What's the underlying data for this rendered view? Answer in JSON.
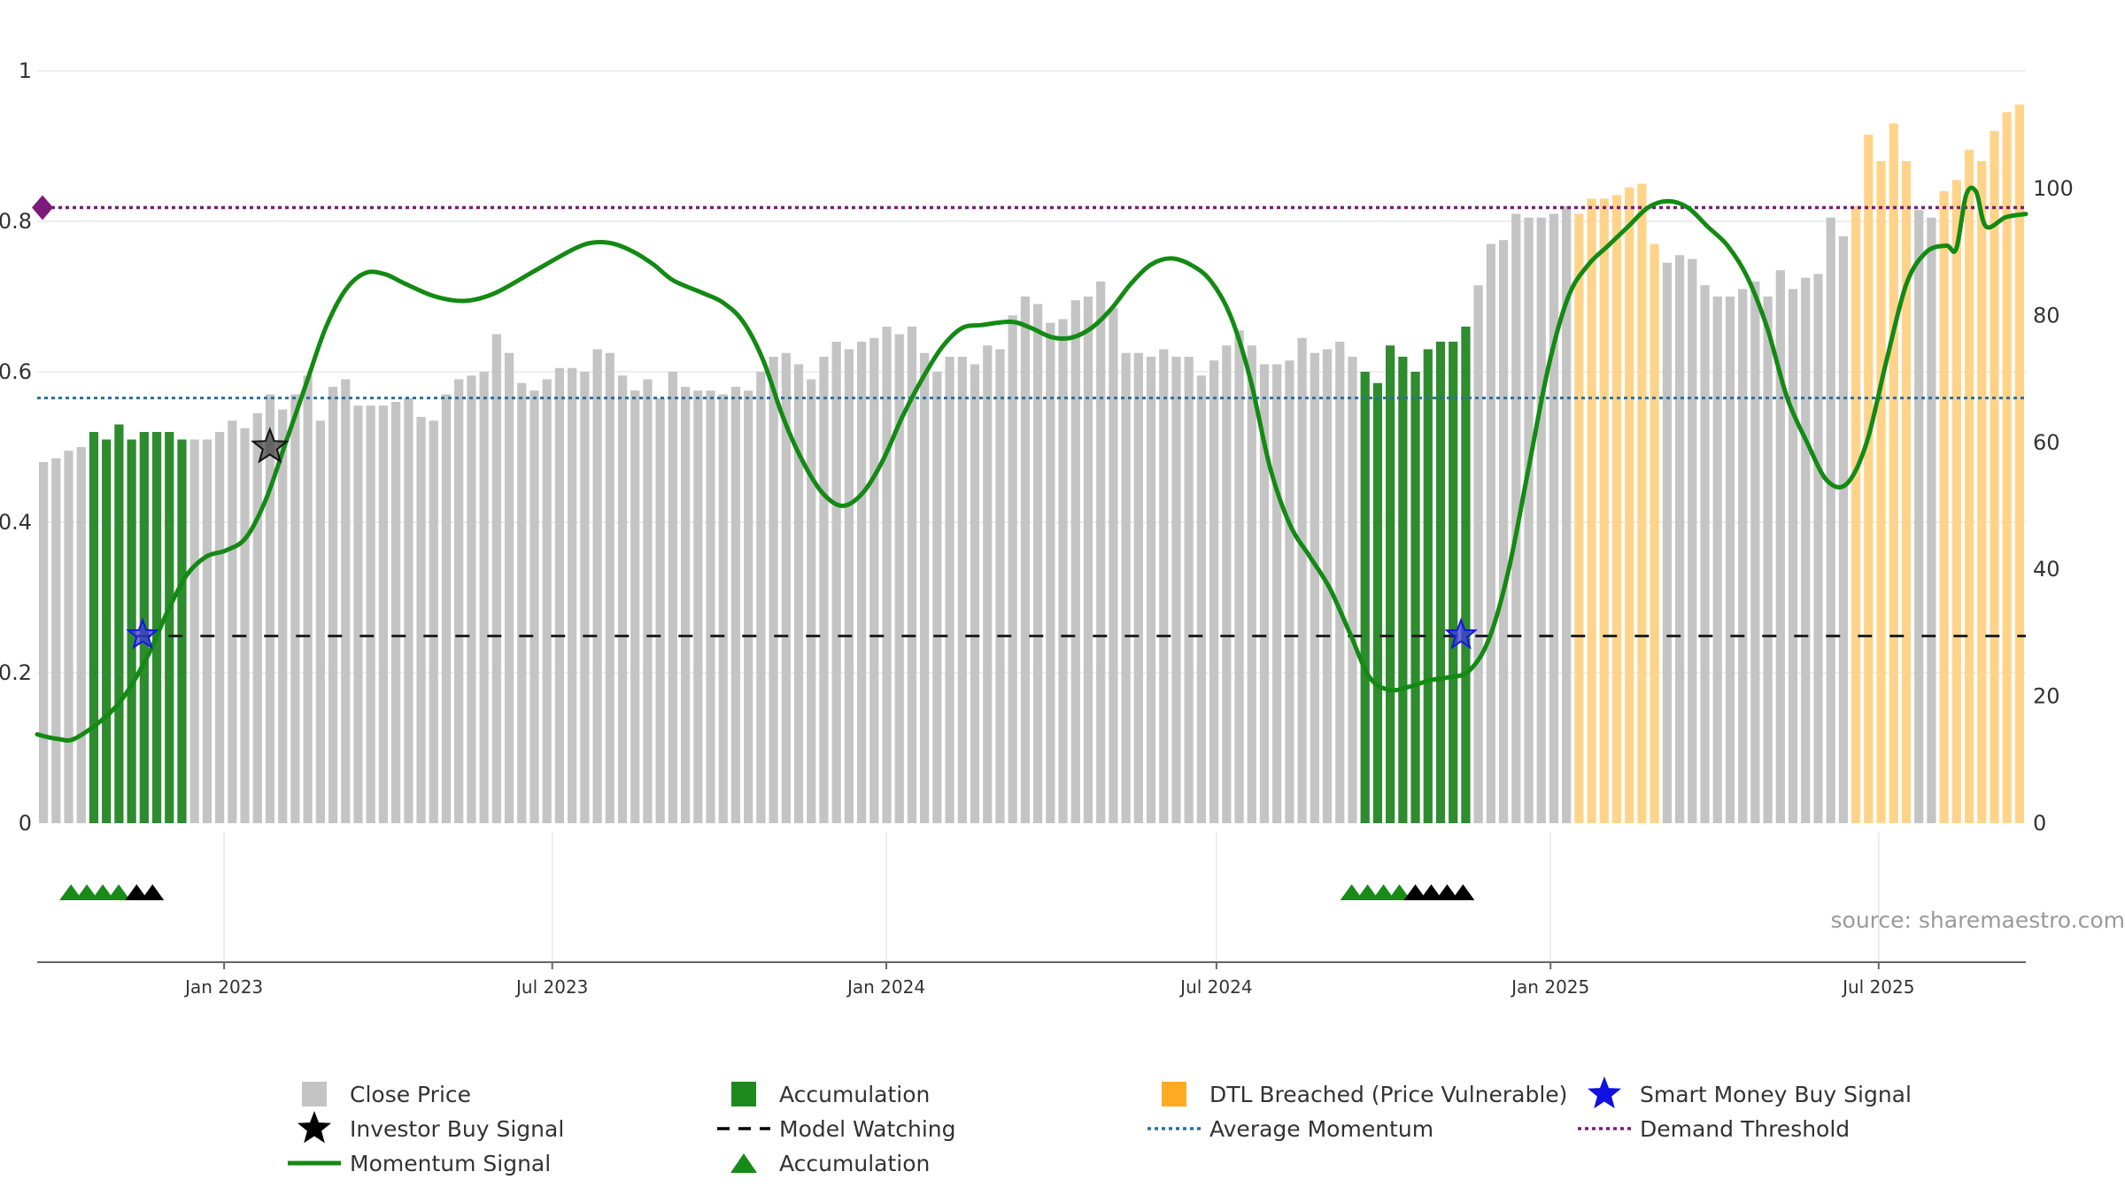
{
  "source_text": "source: sharemaestro.com",
  "colors": {
    "close": "#c4c4c4",
    "accumulation": "#2e8b2e",
    "dtl": "#ffd48a",
    "momentum": "#138a13",
    "average_momentum": "#2b6f9a",
    "demand_threshold": "#7b1a7b",
    "model_watching": "#222222",
    "smart_money": "#1515dd",
    "investor": "#111111",
    "grid": "#e8e8e8"
  },
  "chart_data": {
    "type": "bar",
    "left_axis": {
      "ylim": [
        0,
        1
      ],
      "ticks": [
        "0",
        "0.2",
        "0.4",
        "0.6",
        "0.8",
        "1"
      ]
    },
    "right_axis": {
      "ylim": [
        0,
        115
      ],
      "ticks": [
        "0",
        "20",
        "40",
        "60",
        "80",
        "100"
      ]
    },
    "x_ticks": [
      "Jan 2023",
      "Jul 2023",
      "Jan 2024",
      "Jul 2024",
      "Jan 2025",
      "Jul 2025"
    ],
    "close_price": [
      0.48,
      0.485,
      0.495,
      0.5,
      0.52,
      0.51,
      0.53,
      0.51,
      0.52,
      0.52,
      0.52,
      0.51,
      0.51,
      0.51,
      0.52,
      0.535,
      0.525,
      0.545,
      0.57,
      0.55,
      0.57,
      0.595,
      0.535,
      0.58,
      0.59,
      0.555,
      0.555,
      0.555,
      0.56,
      0.565,
      0.54,
      0.535,
      0.57,
      0.59,
      0.595,
      0.6,
      0.65,
      0.625,
      0.585,
      0.575,
      0.59,
      0.605,
      0.605,
      0.6,
      0.63,
      0.625,
      0.595,
      0.575,
      0.59,
      0.565,
      0.6,
      0.58,
      0.575,
      0.575,
      0.57,
      0.58,
      0.575,
      0.6,
      0.62,
      0.625,
      0.61,
      0.59,
      0.62,
      0.64,
      0.63,
      0.64,
      0.645,
      0.66,
      0.65,
      0.66,
      0.625,
      0.6,
      0.62,
      0.62,
      0.61,
      0.635,
      0.63,
      0.675,
      0.7,
      0.69,
      0.665,
      0.67,
      0.695,
      0.7,
      0.72,
      0.685,
      0.625,
      0.625,
      0.62,
      0.63,
      0.62,
      0.62,
      0.595,
      0.615,
      0.635,
      0.655,
      0.635,
      0.61,
      0.61,
      0.615,
      0.645,
      0.625,
      0.63,
      0.64,
      0.62,
      0.6,
      0.585,
      0.635,
      0.62,
      0.6,
      0.63,
      0.64,
      0.64,
      0.66,
      0.715,
      0.77,
      0.775,
      0.81,
      0.805,
      0.805,
      0.81,
      0.82,
      0.81,
      0.83,
      0.83,
      0.835,
      0.845,
      0.85,
      0.77,
      0.745,
      0.755,
      0.75,
      0.715,
      0.7,
      0.7,
      0.71,
      0.72,
      0.7,
      0.735,
      0.71,
      0.725,
      0.73,
      0.805,
      0.78,
      0.82,
      0.915,
      0.88,
      0.93,
      0.88,
      0.815,
      0.805,
      0.84,
      0.855,
      0.895,
      0.88,
      0.92,
      0.945,
      0.955
    ],
    "accumulation_bars": [
      4,
      5,
      6,
      7,
      8,
      9,
      10,
      11,
      1038,
      1039,
      1040,
      1041,
      1042,
      1043,
      1044,
      1045
    ],
    "momentum": [
      [
        0.0,
        14
      ],
      [
        0.01,
        13.3
      ],
      [
        0.02,
        13.5
      ],
      [
        0.04,
        18.5
      ],
      [
        0.055,
        26
      ],
      [
        0.065,
        33
      ],
      [
        0.075,
        39
      ],
      [
        0.085,
        42
      ],
      [
        0.095,
        43
      ],
      [
        0.105,
        45
      ],
      [
        0.115,
        51
      ],
      [
        0.125,
        60
      ],
      [
        0.135,
        69
      ],
      [
        0.145,
        78
      ],
      [
        0.155,
        84
      ],
      [
        0.165,
        86.7
      ],
      [
        0.175,
        86.5
      ],
      [
        0.185,
        85
      ],
      [
        0.2,
        83
      ],
      [
        0.215,
        82.3
      ],
      [
        0.23,
        83.5
      ],
      [
        0.25,
        87
      ],
      [
        0.27,
        90.5
      ],
      [
        0.28,
        91.5
      ],
      [
        0.29,
        91.3
      ],
      [
        0.3,
        90
      ],
      [
        0.31,
        88
      ],
      [
        0.32,
        85.5
      ],
      [
        0.335,
        83.5
      ],
      [
        0.345,
        82
      ],
      [
        0.355,
        79
      ],
      [
        0.365,
        73
      ],
      [
        0.375,
        64
      ],
      [
        0.385,
        57
      ],
      [
        0.395,
        52
      ],
      [
        0.405,
        50
      ],
      [
        0.415,
        52
      ],
      [
        0.425,
        57
      ],
      [
        0.435,
        64
      ],
      [
        0.445,
        70
      ],
      [
        0.455,
        75
      ],
      [
        0.465,
        78
      ],
      [
        0.475,
        78.5
      ],
      [
        0.49,
        79
      ],
      [
        0.5,
        78
      ],
      [
        0.51,
        76.6
      ],
      [
        0.52,
        76.5
      ],
      [
        0.53,
        78
      ],
      [
        0.54,
        81
      ],
      [
        0.55,
        85
      ],
      [
        0.56,
        88
      ],
      [
        0.57,
        89
      ],
      [
        0.58,
        88
      ],
      [
        0.59,
        85.5
      ],
      [
        0.6,
        80
      ],
      [
        0.61,
        70
      ],
      [
        0.62,
        56
      ],
      [
        0.63,
        47
      ],
      [
        0.64,
        42
      ],
      [
        0.65,
        37
      ],
      [
        0.66,
        30
      ],
      [
        0.67,
        23
      ],
      [
        0.68,
        21
      ],
      [
        0.69,
        21.5
      ],
      [
        0.7,
        22.5
      ],
      [
        0.71,
        23
      ],
      [
        0.72,
        24
      ],
      [
        0.73,
        29
      ],
      [
        0.74,
        40
      ],
      [
        0.75,
        56
      ],
      [
        0.76,
        72
      ],
      [
        0.77,
        83
      ],
      [
        0.78,
        88
      ],
      [
        0.79,
        91
      ],
      [
        0.8,
        94
      ],
      [
        0.81,
        97
      ],
      [
        0.82,
        98
      ],
      [
        0.83,
        97
      ],
      [
        0.84,
        94
      ],
      [
        0.85,
        91
      ],
      [
        0.86,
        86
      ],
      [
        0.87,
        78
      ],
      [
        0.88,
        67
      ],
      [
        0.89,
        60
      ],
      [
        0.9,
        54
      ],
      [
        0.91,
        53.5
      ],
      [
        0.92,
        60
      ],
      [
        0.93,
        73
      ],
      [
        0.94,
        85
      ],
      [
        0.95,
        90
      ],
      [
        0.96,
        91
      ],
      [
        0.965,
        90.5
      ],
      [
        0.97,
        99
      ],
      [
        0.975,
        99.5
      ],
      [
        0.98,
        94
      ],
      [
        0.99,
        95.5
      ],
      [
        1.0,
        96
      ]
    ],
    "average_momentum": 67,
    "demand_threshold": 97,
    "model_watching": 29.5,
    "investor_buy_signals": [
      {
        "x": 0.117,
        "value": 0.5
      }
    ],
    "smart_money_buy_signals": [
      {
        "x": 0.053,
        "value": 0.25
      },
      {
        "x": 0.716,
        "value": 0.25
      }
    ],
    "accumulation_markers_green": [
      0.017,
      0.025,
      0.033,
      0.041,
      0.661,
      0.669,
      0.677,
      0.685
    ],
    "accumulation_markers_black": [
      0.05,
      0.058,
      0.693,
      0.701,
      0.709,
      0.717
    ]
  },
  "legend": [
    {
      "label": "Close Price",
      "symbol": "square-gray"
    },
    {
      "label": "Accumulation",
      "symbol": "square-green"
    },
    {
      "label": "DTL Breached (Price Vulnerable)",
      "symbol": "square-orange"
    },
    {
      "label": "Smart Money Buy Signal",
      "symbol": "star-blue"
    },
    {
      "label": "Investor Buy Signal",
      "symbol": "star-black"
    },
    {
      "label": "Model Watching",
      "symbol": "dash-black"
    },
    {
      "label": "Average Momentum",
      "symbol": "dot-blue"
    },
    {
      "label": "Demand Threshold",
      "symbol": "dot-purple"
    },
    {
      "label": "Momentum Signal",
      "symbol": "line-green"
    },
    {
      "label": "Accumulation",
      "symbol": "triangle-green"
    }
  ]
}
